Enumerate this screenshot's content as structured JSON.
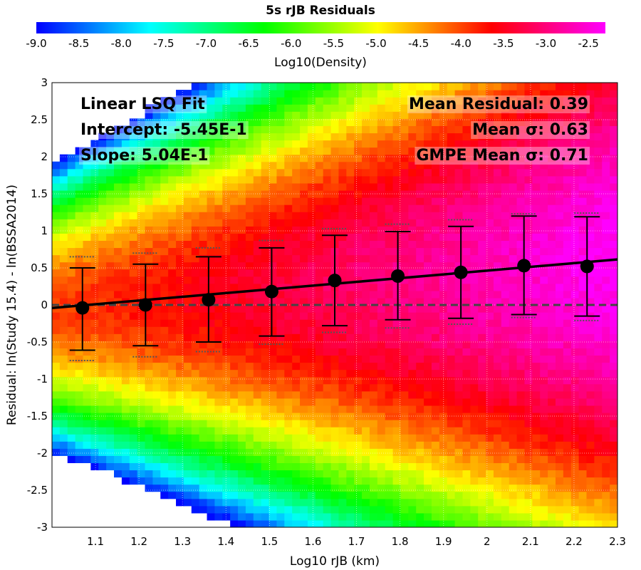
{
  "chart_data": {
    "type": "heatmap",
    "title": "5s rJB Residuals",
    "xlabel": "Log10 rJB (km)",
    "ylabel": "Residual: ln(Study 15.4) - ln(BSSA2014)",
    "xlim": [
      1.0,
      2.3
    ],
    "ylim": [
      -3,
      3
    ],
    "x_ticks": [
      "1.1",
      "1.2",
      "1.3",
      "1.4",
      "1.5",
      "1.6",
      "1.7",
      "1.8",
      "1.9",
      "2",
      "2.1",
      "2.2",
      "2.3"
    ],
    "y_ticks": [
      "-3",
      "-2.5",
      "-2",
      "-1.5",
      "-1",
      "-0.5",
      "0",
      "0.5",
      "1",
      "1.5",
      "2",
      "2.5",
      "3"
    ],
    "colorbar": {
      "label": "Log10(Density)",
      "range": [
        -9.0,
        -2.3
      ],
      "ticks": [
        "-9.0",
        "-8.5",
        "-8.0",
        "-7.5",
        "-7.0",
        "-6.5",
        "-6.0",
        "-5.5",
        "-5.0",
        "-4.5",
        "-4.0",
        "-3.5",
        "-3.0",
        "-2.5"
      ],
      "colormap": [
        "#0000ff",
        "#00ffff",
        "#00ff00",
        "#ffff00",
        "#ff0000",
        "#ff00ff"
      ]
    },
    "binned_means": {
      "x": [
        1.07,
        1.215,
        1.36,
        1.505,
        1.65,
        1.795,
        1.94,
        2.085,
        2.23
      ],
      "mean": [
        -0.04,
        0.0,
        0.07,
        0.18,
        0.33,
        0.39,
        0.44,
        0.53,
        0.52
      ],
      "std_low": [
        -0.61,
        -0.55,
        -0.5,
        -0.42,
        -0.28,
        -0.2,
        -0.18,
        -0.13,
        -0.15
      ],
      "std_high": [
        0.5,
        0.55,
        0.65,
        0.77,
        0.94,
        0.99,
        1.06,
        1.2,
        1.19
      ],
      "gmpe_low": [
        -0.75,
        -0.7,
        -0.63,
        -0.53,
        -0.37,
        -0.31,
        -0.26,
        -0.17,
        -0.21
      ],
      "gmpe_high": [
        0.65,
        0.7,
        0.77,
        0.87,
        1.03,
        1.09,
        1.15,
        1.23,
        1.24
      ]
    },
    "fit_line": {
      "intercept": -0.545,
      "slope": 0.504
    },
    "zero_line": 0,
    "annotations": {
      "fit_title": "Linear LSQ Fit",
      "intercept": "Intercept: -5.45E-1",
      "slope": "Slope: 5.04E-1",
      "mean_residual": "Mean Residual: 0.39",
      "mean_sigma": "Mean σ: 0.63",
      "gmpe_sigma": "GMPE Mean σ: 0.71"
    },
    "grid": true
  }
}
